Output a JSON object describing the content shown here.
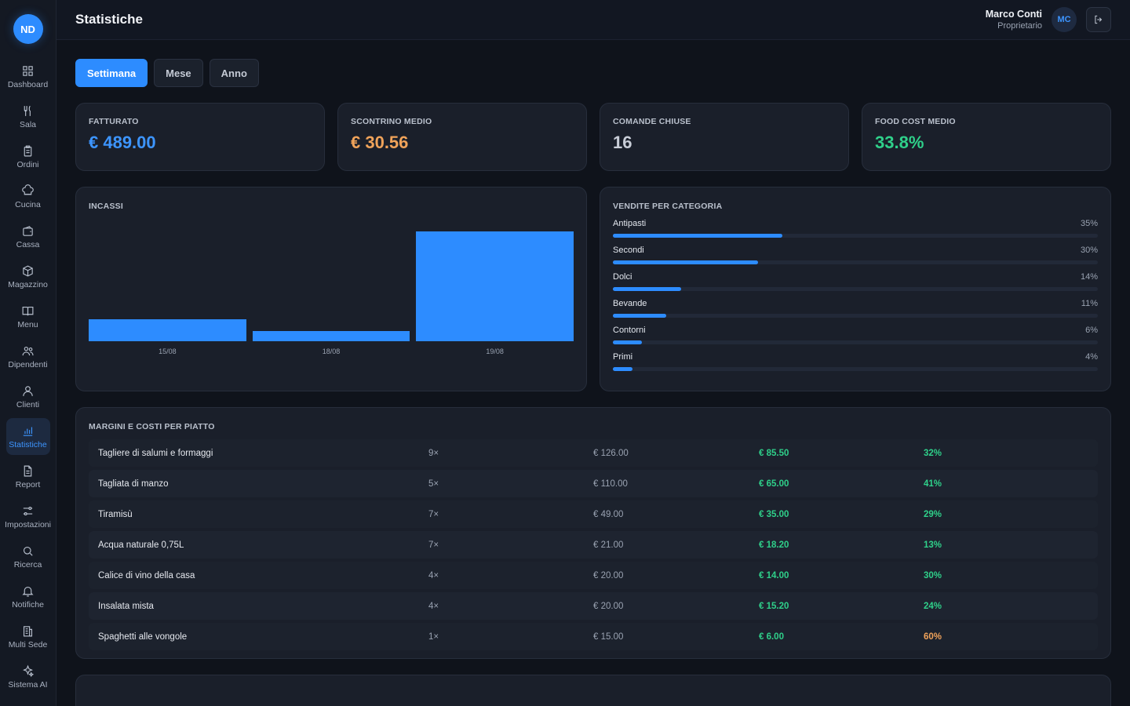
{
  "logo": "ND",
  "sidebar": [
    {
      "label": "Dashboard",
      "icon": "grid-icon"
    },
    {
      "label": "Sala",
      "icon": "fork-knife-icon"
    },
    {
      "label": "Ordini",
      "icon": "clipboard-icon"
    },
    {
      "label": "Cucina",
      "icon": "chef-hat-icon"
    },
    {
      "label": "Cassa",
      "icon": "wallet-icon"
    },
    {
      "label": "Magazzino",
      "icon": "box-icon"
    },
    {
      "label": "Menu",
      "icon": "book-icon"
    },
    {
      "label": "Dipendenti",
      "icon": "users-icon"
    },
    {
      "label": "Clienti",
      "icon": "user-icon"
    },
    {
      "label": "Statistiche",
      "icon": "bar-chart-icon",
      "active": true
    },
    {
      "label": "Report",
      "icon": "document-icon"
    },
    {
      "label": "Impostazioni",
      "icon": "sliders-icon"
    },
    {
      "label": "Ricerca",
      "icon": "search-icon"
    },
    {
      "label": "Notifiche",
      "icon": "bell-icon"
    },
    {
      "label": "Multi Sede",
      "icon": "building-icon"
    },
    {
      "label": "Sistema AI",
      "icon": "sparkle-icon"
    }
  ],
  "header": {
    "title": "Statistiche",
    "user_name": "Marco Conti",
    "user_role": "Proprietario",
    "avatar": "MC"
  },
  "tabs": [
    {
      "label": "Settimana",
      "active": true
    },
    {
      "label": "Mese",
      "active": false
    },
    {
      "label": "Anno",
      "active": false
    }
  ],
  "kpis": [
    {
      "label": "FATTURATO",
      "value": "€ 489.00",
      "color": "#3d95ff"
    },
    {
      "label": "SCONTRINO MEDIO",
      "value": "€ 30.56",
      "color": "#f0a35a"
    },
    {
      "label": "COMANDE CHIUSE",
      "value": "16",
      "color": "#c9ced8"
    },
    {
      "label": "FOOD COST MEDIO",
      "value": "33.8%",
      "color": "#2fd08a"
    }
  ],
  "incassi": {
    "title": "INCASSI"
  },
  "chart_data": {
    "type": "bar",
    "categories": [
      "15/08",
      "18/08",
      "19/08"
    ],
    "values": [
      75,
      35,
      380
    ],
    "title": "INCASSI",
    "xlabel": "",
    "ylabel": "",
    "grid": false
  },
  "categorie": {
    "title": "VENDITE PER CATEGORIA",
    "items": [
      {
        "label": "Antipasti",
        "pct_label": "35%",
        "value": 35
      },
      {
        "label": "Secondi",
        "pct_label": "30%",
        "value": 30
      },
      {
        "label": "Dolci",
        "pct_label": "14%",
        "value": 14
      },
      {
        "label": "Bevande",
        "pct_label": "11%",
        "value": 11
      },
      {
        "label": "Contorni",
        "pct_label": "6%",
        "value": 6
      },
      {
        "label": "Primi",
        "pct_label": "4%",
        "value": 4
      }
    ]
  },
  "margini": {
    "title": "MARGINI E COSTI PER PIATTO",
    "rows": [
      {
        "name": "Tagliere di salumi e formaggi",
        "qty": "9×",
        "revenue": "€ 126.00",
        "margin": "€ 85.50",
        "pct": "32%",
        "status": "green"
      },
      {
        "name": "Tagliata di manzo",
        "qty": "5×",
        "revenue": "€ 110.00",
        "margin": "€ 65.00",
        "pct": "41%",
        "status": "green"
      },
      {
        "name": "Tiramisù",
        "qty": "7×",
        "revenue": "€ 49.00",
        "margin": "€ 35.00",
        "pct": "29%",
        "status": "green"
      },
      {
        "name": "Acqua naturale 0,75L",
        "qty": "7×",
        "revenue": "€ 21.00",
        "margin": "€ 18.20",
        "pct": "13%",
        "status": "green"
      },
      {
        "name": "Calice di vino della casa",
        "qty": "4×",
        "revenue": "€ 20.00",
        "margin": "€ 14.00",
        "pct": "30%",
        "status": "green"
      },
      {
        "name": "Insalata mista",
        "qty": "4×",
        "revenue": "€ 20.00",
        "margin": "€ 15.20",
        "pct": "24%",
        "status": "green"
      },
      {
        "name": "Spaghetti alle vongole",
        "qty": "1×",
        "revenue": "€ 15.00",
        "margin": "€ 6.00",
        "pct": "60%",
        "status": "orange"
      }
    ]
  }
}
